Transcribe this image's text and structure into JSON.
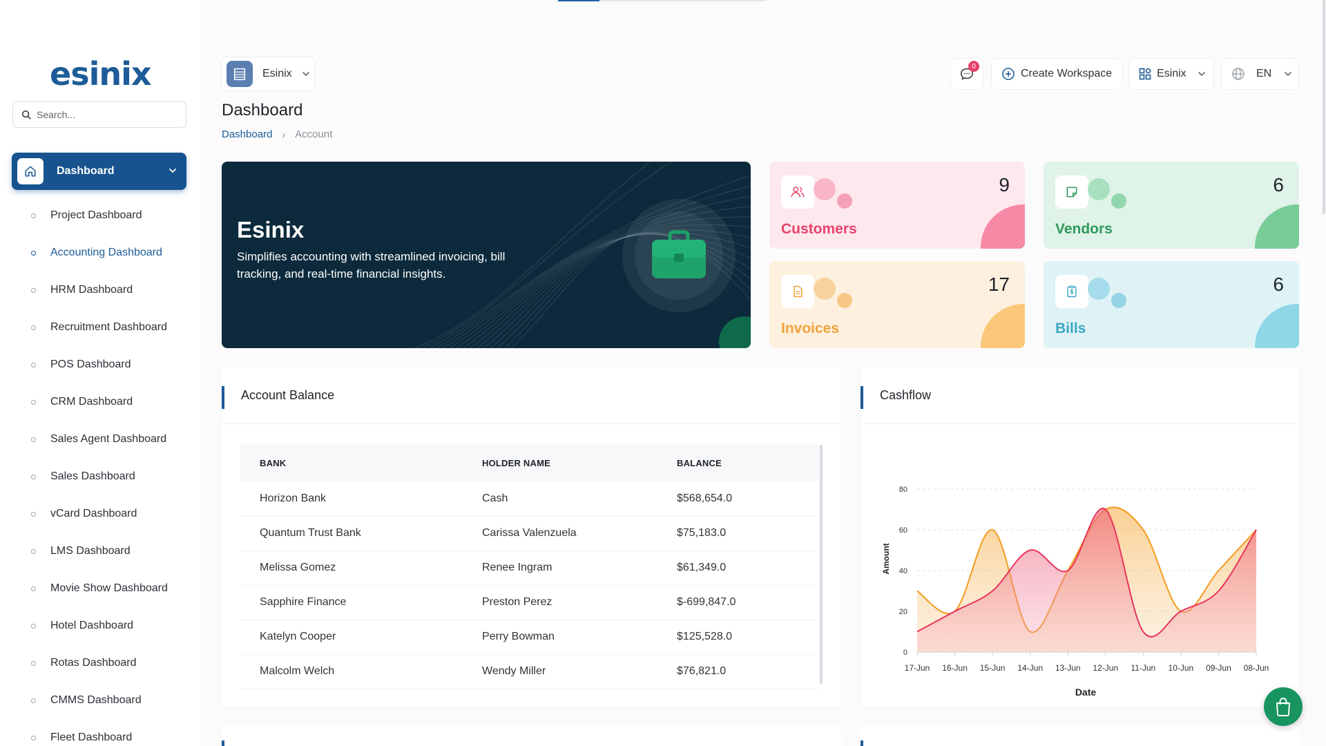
{
  "brand": {
    "logo": "esinix"
  },
  "search": {
    "placeholder": "Search..."
  },
  "sidebar": {
    "active": {
      "label": "Dashboard"
    },
    "items": [
      {
        "label": "Project Dashboard"
      },
      {
        "label": "Accounting Dashboard",
        "current": true
      },
      {
        "label": "HRM Dashboard"
      },
      {
        "label": "Recruitment Dashboard"
      },
      {
        "label": "POS Dashboard"
      },
      {
        "label": "CRM Dashboard"
      },
      {
        "label": "Sales Agent Dashboard"
      },
      {
        "label": "Sales Dashboard"
      },
      {
        "label": "vCard Dashboard"
      },
      {
        "label": "LMS Dashboard"
      },
      {
        "label": "Movie Show Dashboard"
      },
      {
        "label": "Hotel Dashboard"
      },
      {
        "label": "Rotas Dashboard"
      },
      {
        "label": "CMMS Dashboard"
      },
      {
        "label": "Fleet Dashboard"
      }
    ]
  },
  "header": {
    "workspace": "Esinix",
    "messages_count": "0",
    "create_workspace": "Create Workspace",
    "org": "Esinix",
    "language": "EN",
    "title": "Dashboard",
    "breadcrumb": {
      "link": "Dashboard",
      "current": "Account"
    }
  },
  "hero": {
    "title": "Esinix",
    "description": "Simplifies accounting with streamlined invoicing, bill tracking, and real-time financial insights."
  },
  "stats": [
    {
      "label": "Customers",
      "value": "9",
      "color": "#e7426a"
    },
    {
      "label": "Vendors",
      "value": "6",
      "color": "#2f9a5c"
    },
    {
      "label": "Invoices",
      "value": "17",
      "color": "#f0a23a"
    },
    {
      "label": "Bills",
      "value": "6",
      "color": "#3aa6c4"
    }
  ],
  "account_balance": {
    "title": "Account Balance",
    "columns": [
      "BANK",
      "HOLDER NAME",
      "BALANCE"
    ],
    "rows": [
      [
        "Horizon Bank",
        "Cash",
        "$568,654.0"
      ],
      [
        "Quantum Trust Bank",
        "Carissa Valenzuela",
        "$75,183.0"
      ],
      [
        "Melissa Gomez",
        "Renee Ingram",
        "$61,349.0"
      ],
      [
        "Sapphire Finance",
        "Preston Perez",
        "$-699,847.0"
      ],
      [
        "Katelyn Cooper",
        "Perry Bowman",
        "$125,528.0"
      ],
      [
        "Malcolm Welch",
        "Wendy Miller",
        "$76,821.0"
      ]
    ]
  },
  "cashflow": {
    "title": "Cashflow",
    "chart_data": {
      "type": "area",
      "xlabel": "Date",
      "ylabel": "Amount",
      "ylim": [
        0,
        80
      ],
      "yticks": [
        0,
        20,
        40,
        60,
        80
      ],
      "categories": [
        "17-Jun",
        "16-Jun",
        "15-Jun",
        "14-Jun",
        "13-Jun",
        "12-Jun",
        "11-Jun",
        "10-Jun",
        "09-Jun",
        "08-Jun"
      ],
      "series": [
        {
          "color": "#e8345c",
          "values": [
            10,
            20,
            30,
            50,
            40,
            70,
            10,
            20,
            30,
            60
          ]
        },
        {
          "color": "#f39c1f",
          "values": [
            30,
            20,
            60,
            10,
            40,
            70,
            60,
            20,
            40,
            60
          ]
        }
      ],
      "grid": true
    }
  }
}
